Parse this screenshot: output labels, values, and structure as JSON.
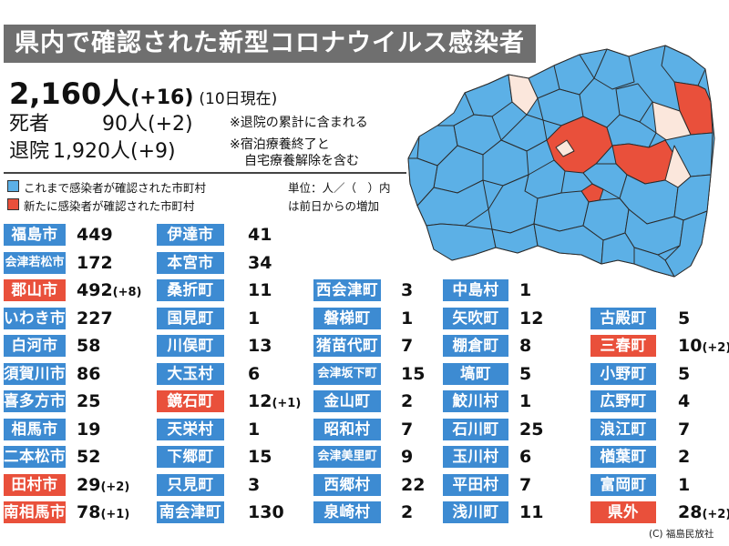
{
  "title": "県内で確認された新型コロナウイルス感染者",
  "summary": {
    "total_value": "2,160人",
    "total_increase": "(+16)",
    "as_of": "(10日現在)",
    "deaths_label": "死者",
    "deaths_value": "90人",
    "deaths_increase": "(+2)",
    "recovered_label": "退院",
    "recovered_value": "1,920人",
    "recovered_increase": "(+9)",
    "note_1": "※退院の累計に含まれる",
    "note_2": "※宿泊療養終了と",
    "note_3": "自宅療養解除を含む"
  },
  "legend": {
    "existing_label": "これまで感染者が確認された市町村",
    "new_label": "新たに感染者が確認された市町村",
    "unit_line_1": "単位：人／（　）内",
    "unit_line_2": "は前日からの増加"
  },
  "colors": {
    "existing": "#5cb0e6",
    "new": "#e9503b",
    "none": "#fbe7dc",
    "title_bg": "#6f6f6f"
  },
  "municipalities": [
    {
      "name": "福島市",
      "count": "449",
      "increase": "",
      "status": "existing"
    },
    {
      "name": "会津若松市",
      "count": "172",
      "increase": "",
      "status": "existing"
    },
    {
      "name": "郡山市",
      "count": "492",
      "increase": "(+8)",
      "status": "new"
    },
    {
      "name": "いわき市",
      "count": "227",
      "increase": "",
      "status": "existing"
    },
    {
      "name": "白河市",
      "count": "58",
      "increase": "",
      "status": "existing"
    },
    {
      "name": "須賀川市",
      "count": "86",
      "increase": "",
      "status": "existing"
    },
    {
      "name": "喜多方市",
      "count": "25",
      "increase": "",
      "status": "existing"
    },
    {
      "name": "相馬市",
      "count": "19",
      "increase": "",
      "status": "existing"
    },
    {
      "name": "二本松市",
      "count": "52",
      "increase": "",
      "status": "existing"
    },
    {
      "name": "田村市",
      "count": "29",
      "increase": "(+2)",
      "status": "new"
    },
    {
      "name": "南相馬市",
      "count": "78",
      "increase": "(+1)",
      "status": "new"
    },
    {
      "name": "伊達市",
      "count": "41",
      "increase": "",
      "status": "existing"
    },
    {
      "name": "本宮市",
      "count": "34",
      "increase": "",
      "status": "existing"
    },
    {
      "name": "桑折町",
      "count": "11",
      "increase": "",
      "status": "existing"
    },
    {
      "name": "国見町",
      "count": "1",
      "increase": "",
      "status": "existing"
    },
    {
      "name": "川俣町",
      "count": "13",
      "increase": "",
      "status": "existing"
    },
    {
      "name": "大玉村",
      "count": "6",
      "increase": "",
      "status": "existing"
    },
    {
      "name": "鏡石町",
      "count": "12",
      "increase": "(+1)",
      "status": "new"
    },
    {
      "name": "天栄村",
      "count": "1",
      "increase": "",
      "status": "existing"
    },
    {
      "name": "下郷町",
      "count": "15",
      "increase": "",
      "status": "existing"
    },
    {
      "name": "只見町",
      "count": "3",
      "increase": "",
      "status": "existing"
    },
    {
      "name": "南会津町",
      "count": "130",
      "increase": "",
      "status": "existing"
    },
    {
      "name": "西会津町",
      "count": "3",
      "increase": "",
      "status": "existing"
    },
    {
      "name": "磐梯町",
      "count": "1",
      "increase": "",
      "status": "existing"
    },
    {
      "name": "猪苗代町",
      "count": "7",
      "increase": "",
      "status": "existing"
    },
    {
      "name": "会津坂下町",
      "count": "15",
      "increase": "",
      "status": "existing"
    },
    {
      "name": "金山町",
      "count": "2",
      "increase": "",
      "status": "existing"
    },
    {
      "name": "昭和村",
      "count": "7",
      "increase": "",
      "status": "existing"
    },
    {
      "name": "会津美里町",
      "count": "9",
      "increase": "",
      "status": "existing"
    },
    {
      "name": "西郷村",
      "count": "22",
      "increase": "",
      "status": "existing"
    },
    {
      "name": "泉崎村",
      "count": "2",
      "increase": "",
      "status": "existing"
    },
    {
      "name": "中島村",
      "count": "1",
      "increase": "",
      "status": "existing"
    },
    {
      "name": "矢吹町",
      "count": "12",
      "increase": "",
      "status": "existing"
    },
    {
      "name": "棚倉町",
      "count": "8",
      "increase": "",
      "status": "existing"
    },
    {
      "name": "塙町",
      "count": "5",
      "increase": "",
      "status": "existing"
    },
    {
      "name": "鮫川村",
      "count": "1",
      "increase": "",
      "status": "existing"
    },
    {
      "name": "石川町",
      "count": "25",
      "increase": "",
      "status": "existing"
    },
    {
      "name": "玉川村",
      "count": "6",
      "increase": "",
      "status": "existing"
    },
    {
      "name": "平田村",
      "count": "7",
      "increase": "",
      "status": "existing"
    },
    {
      "name": "浅川町",
      "count": "11",
      "increase": "",
      "status": "existing"
    },
    {
      "name": "古殿町",
      "count": "5",
      "increase": "",
      "status": "existing"
    },
    {
      "name": "三春町",
      "count": "10",
      "increase": "(+2)",
      "status": "new"
    },
    {
      "name": "小野町",
      "count": "5",
      "increase": "",
      "status": "existing"
    },
    {
      "name": "広野町",
      "count": "4",
      "increase": "",
      "status": "existing"
    },
    {
      "name": "浪江町",
      "count": "7",
      "increase": "",
      "status": "existing"
    },
    {
      "name": "楢葉町",
      "count": "2",
      "increase": "",
      "status": "existing"
    },
    {
      "name": "富岡町",
      "count": "1",
      "increase": "",
      "status": "existing"
    },
    {
      "name": "県外",
      "count": "28",
      "increase": "(+2)",
      "status": "new"
    }
  ],
  "copyright": "(C) 福島民放社"
}
